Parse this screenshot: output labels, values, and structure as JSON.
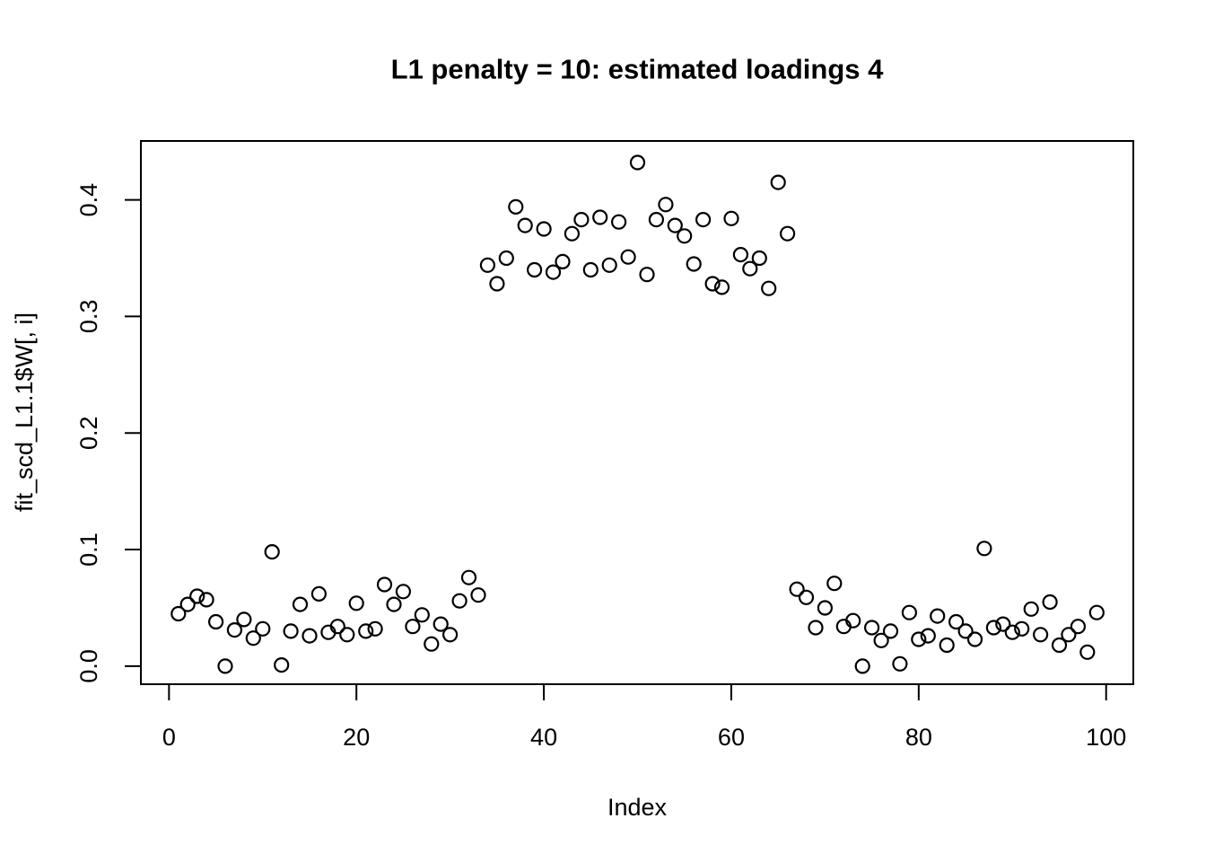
{
  "figure": {
    "background": "#ffffff",
    "foreground": "#000000"
  },
  "chart_data": {
    "type": "scatter",
    "title": "L1 penalty = 10: estimated loadings 4",
    "xlabel": "Index",
    "ylabel": "fit_scd_L1.1$W[, i]",
    "point_style": "open-circle",
    "point_color": "#000000",
    "grid": false,
    "legend": null,
    "xlim": [
      -3.0,
      102.9
    ],
    "ylim": [
      -0.0155,
      0.4505
    ],
    "x_ticks": [
      0,
      20,
      40,
      60,
      80,
      100
    ],
    "x_tick_labels": [
      "0",
      "20",
      "40",
      "60",
      "80",
      "100"
    ],
    "y_ticks": [
      0.0,
      0.1,
      0.2,
      0.3,
      0.4
    ],
    "y_tick_labels": [
      "0.0",
      "0.1",
      "0.2",
      "0.3",
      "0.4"
    ],
    "x": [
      1,
      2,
      3,
      4,
      5,
      6,
      7,
      8,
      9,
      10,
      11,
      12,
      13,
      14,
      15,
      16,
      17,
      18,
      19,
      20,
      21,
      22,
      23,
      24,
      25,
      26,
      27,
      28,
      29,
      30,
      31,
      32,
      33,
      34,
      35,
      36,
      37,
      38,
      39,
      40,
      41,
      42,
      43,
      44,
      45,
      46,
      47,
      48,
      49,
      50,
      51,
      52,
      53,
      54,
      55,
      56,
      57,
      58,
      59,
      60,
      61,
      62,
      63,
      64,
      65,
      66,
      67,
      68,
      69,
      70,
      71,
      72,
      73,
      74,
      75,
      76,
      77,
      78,
      79,
      80,
      81,
      82,
      83,
      84,
      85,
      86,
      87,
      88,
      89,
      90,
      91,
      92,
      93,
      94,
      95,
      96,
      97,
      98,
      99
    ],
    "y": [
      0.045,
      0.053,
      0.06,
      0.057,
      0.038,
      0.0,
      0.031,
      0.04,
      0.024,
      0.032,
      0.098,
      0.001,
      0.03,
      0.053,
      0.026,
      0.062,
      0.029,
      0.034,
      0.027,
      0.054,
      0.03,
      0.032,
      0.07,
      0.053,
      0.064,
      0.034,
      0.044,
      0.019,
      0.036,
      0.027,
      0.056,
      0.076,
      0.061,
      0.344,
      0.328,
      0.35,
      0.394,
      0.378,
      0.34,
      0.375,
      0.338,
      0.347,
      0.371,
      0.383,
      0.34,
      0.385,
      0.344,
      0.381,
      0.351,
      0.432,
      0.336,
      0.383,
      0.396,
      0.378,
      0.369,
      0.345,
      0.383,
      0.328,
      0.325,
      0.384,
      0.353,
      0.341,
      0.35,
      0.324,
      0.415,
      0.371,
      0.066,
      0.059,
      0.033,
      0.05,
      0.071,
      0.034,
      0.039,
      0.0,
      0.033,
      0.022,
      0.03,
      0.002,
      0.046,
      0.023,
      0.026,
      0.043,
      0.018,
      0.038,
      0.03,
      0.023,
      0.101,
      0.033,
      0.036,
      0.029,
      0.032,
      0.049,
      0.027,
      0.055,
      0.018,
      0.027,
      0.034,
      0.012,
      0.046
    ]
  }
}
